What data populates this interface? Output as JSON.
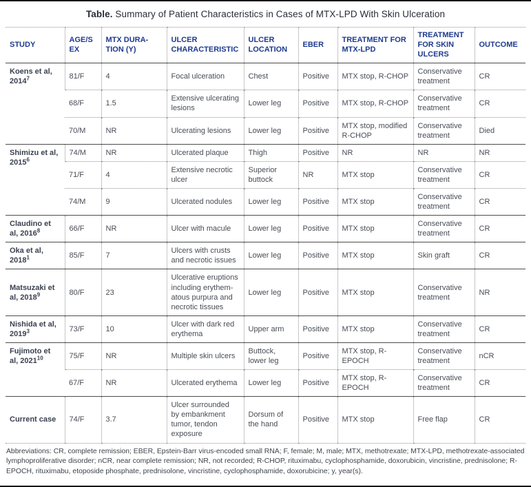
{
  "title": {
    "label": "Table.",
    "text": "Summary of Patient Characteristics in Cases of MTX-LPD With Skin Ulceration"
  },
  "columns": [
    {
      "key": "study",
      "label": "STUDY"
    },
    {
      "key": "age_sex",
      "label": "AGE/SEX"
    },
    {
      "key": "mtx_duration",
      "label": "MTX DURA-TION (Y)"
    },
    {
      "key": "ulcer_characteristic",
      "label": "ULCER CHARACTERISTIC"
    },
    {
      "key": "ulcer_location",
      "label": "ULCER LOCATION"
    },
    {
      "key": "eber",
      "label": "EBER"
    },
    {
      "key": "treatment_mtx_lpd",
      "label": "TREATMENT FOR MTX-LPD"
    },
    {
      "key": "treatment_skin_ulcers",
      "label": "TREATMENT FOR SKIN ULCERS"
    },
    {
      "key": "outcome",
      "label": "OUTCOME"
    }
  ],
  "groups": [
    {
      "study": "Koens et al, 2014",
      "ref": "7",
      "rows": [
        {
          "age_sex": "81/F",
          "mtx_duration": "4",
          "ulcer_characteristic": "Focal ulceration",
          "ulcer_location": "Chest",
          "eber": "Positive",
          "treatment_mtx_lpd": "MTX stop, R-CHOP",
          "treatment_skin_ulcers": "Conservative treatment",
          "outcome": "CR"
        },
        {
          "age_sex": "68/F",
          "mtx_duration": "1.5",
          "ulcer_characteristic": "Extensive ulcerating lesions",
          "ulcer_location": "Lower leg",
          "eber": "Positive",
          "treatment_mtx_lpd": "MTX stop, R-CHOP",
          "treatment_skin_ulcers": "Conservative treatment",
          "outcome": "CR"
        },
        {
          "age_sex": "70/M",
          "mtx_duration": "NR",
          "ulcer_characteristic": "Ulcerating lesions",
          "ulcer_location": "Lower leg",
          "eber": "Positive",
          "treatment_mtx_lpd": "MTX stop, modified R-CHOP",
          "treatment_skin_ulcers": "Conservative treatment",
          "outcome": "Died"
        }
      ]
    },
    {
      "study": "Shimizu et al, 2015",
      "ref": "6",
      "rows": [
        {
          "age_sex": "74/M",
          "mtx_duration": "NR",
          "ulcer_characteristic": "Ulcerated plaque",
          "ulcer_location": "Thigh",
          "eber": "Positive",
          "treatment_mtx_lpd": "NR",
          "treatment_skin_ulcers": "NR",
          "outcome": "NR"
        },
        {
          "age_sex": "71/F",
          "mtx_duration": "4",
          "ulcer_characteristic": "Extensive necrotic ulcer",
          "ulcer_location": "Superior buttock",
          "eber": "NR",
          "treatment_mtx_lpd": "MTX stop",
          "treatment_skin_ulcers": "Conservative treatment",
          "outcome": "CR"
        },
        {
          "age_sex": "74/M",
          "mtx_duration": "9",
          "ulcer_characteristic": "Ulcerated nodules",
          "ulcer_location": "Lower leg",
          "eber": "Positive",
          "treatment_mtx_lpd": "MTX stop",
          "treatment_skin_ulcers": "Conservative treatment",
          "outcome": "CR"
        }
      ]
    },
    {
      "study": "Claudino et al, 2016",
      "ref": "8",
      "rows": [
        {
          "age_sex": "66/F",
          "mtx_duration": "NR",
          "ulcer_characteristic": "Ulcer with macule",
          "ulcer_location": "Lower leg",
          "eber": "Positive",
          "treatment_mtx_lpd": "MTX stop",
          "treatment_skin_ulcers": "Conservative treatment",
          "outcome": "CR"
        }
      ]
    },
    {
      "study": "Oka et al, 2018",
      "ref": "1",
      "rows": [
        {
          "age_sex": "85/F",
          "mtx_duration": "7",
          "ulcer_characteristic": "Ulcers with crusts and necrotic issues",
          "ulcer_location": "Lower leg",
          "eber": "Positive",
          "treatment_mtx_lpd": "MTX stop",
          "treatment_skin_ulcers": "Skin graft",
          "outcome": "CR"
        }
      ]
    },
    {
      "study": "Matsuzaki et al, 2018",
      "ref": "9",
      "rows": [
        {
          "age_sex": "80/F",
          "mtx_duration": "23",
          "ulcer_characteristic": "Ulcerative eruptions including erythem-atous purpura and necrotic tissues",
          "ulcer_location": "Lower leg",
          "eber": "Positive",
          "treatment_mtx_lpd": "MTX stop",
          "treatment_skin_ulcers": "Conservative treatment",
          "outcome": "NR"
        }
      ]
    },
    {
      "study": "Nishida et al, 2019",
      "ref": "3",
      "rows": [
        {
          "age_sex": "73/F",
          "mtx_duration": "10",
          "ulcer_characteristic": "Ulcer with dark red erythema",
          "ulcer_location": "Upper arm",
          "eber": "Positive",
          "treatment_mtx_lpd": "MTX stop",
          "treatment_skin_ulcers": "Conservative treatment",
          "outcome": "CR"
        }
      ]
    },
    {
      "study": "Fujimoto et al, 2021",
      "ref": "10",
      "rows": [
        {
          "age_sex": "75/F",
          "mtx_duration": "NR",
          "ulcer_characteristic": "Multiple skin ulcers",
          "ulcer_location": "Buttock, lower leg",
          "eber": "Positive",
          "treatment_mtx_lpd": "MTX stop, R-EPOCH",
          "treatment_skin_ulcers": "Conservative treatment",
          "outcome": "nCR"
        },
        {
          "age_sex": "67/F",
          "mtx_duration": "NR",
          "ulcer_characteristic": "Ulcerated erythema",
          "ulcer_location": "Lower leg",
          "eber": "Positive",
          "treatment_mtx_lpd": "MTX stop, R-EPOCH",
          "treatment_skin_ulcers": "Conservative treatment",
          "outcome": "CR"
        }
      ]
    },
    {
      "study": "Current case",
      "ref": "",
      "rows": [
        {
          "age_sex": "74/F",
          "mtx_duration": "3.7",
          "ulcer_characteristic": "Ulcer surrounded by embankment tumor, tendon exposure",
          "ulcer_location": "Dorsum of the hand",
          "eber": "Positive",
          "treatment_mtx_lpd": "MTX stop",
          "treatment_skin_ulcers": "Free flap",
          "outcome": "CR"
        }
      ]
    }
  ],
  "footnote": {
    "text": "Abbreviations: CR, complete remission; EBER, Epstein-Barr virus-encoded small RNA; F, female; M, male; MTX, methotrexate; MTX-LPD, methotrexate-associated lymphoproliferative disorder; nCR, near complete remission; NR, not recorded; R-CHOP, rituximabu, cyclophosphamide, doxorubicin, vincristine, prednisolone; R-EPOCH, rituximabu, etoposide phosphate, prednisolone, vincristine, cyclophosphamide, doxorubicine; y, year(s)."
  },
  "colors": {
    "header_text": "#1e3a8f",
    "study_text": "#3a4150",
    "body_text": "#474c55",
    "dotted_border": "#8f8f8f",
    "solid_border": "#161616"
  }
}
